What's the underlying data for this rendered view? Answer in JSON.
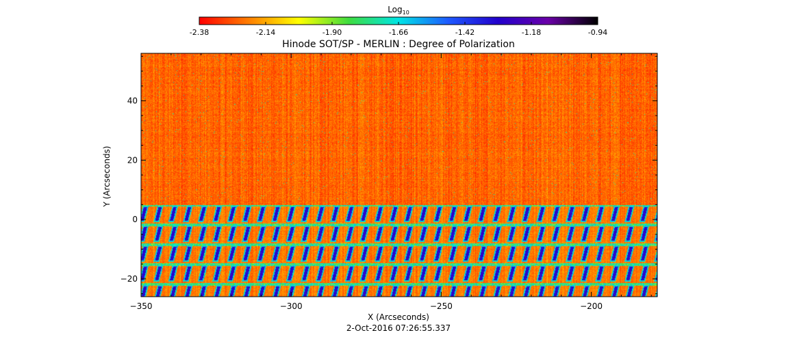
{
  "chart_data": {
    "type": "heatmap",
    "title": "Hinode SOT/SP - MERLIN : Degree of Polarization",
    "xlabel": "X (Arcseconds)",
    "ylabel": "Y (Arcseconds)",
    "xlim": [
      -350,
      -178
    ],
    "ylim": [
      -26,
      56
    ],
    "xticks": [
      -350,
      -300,
      -250,
      -200
    ],
    "yticks": [
      -20,
      0,
      20,
      40
    ],
    "timestamp": "2-Oct-2016 07:26:55.337",
    "colorbar": {
      "label": "Log",
      "label_subscript": "10",
      "range": [
        -2.38,
        -0.94
      ],
      "ticks": [
        "-2.38",
        "-2.14",
        "-1.90",
        "-1.66",
        "-1.42",
        "-1.18",
        "-0.94"
      ],
      "colormap_stops": [
        "#ff0000",
        "#ff7f00",
        "#ffff00",
        "#3fdc3f",
        "#00e5e5",
        "#1e5aff",
        "#2200cc",
        "#6a00a8",
        "#000000"
      ]
    },
    "field": {
      "upper_region": {
        "y_range": [
          5,
          56
        ],
        "log10_mean": -2.3
      },
      "lower_region": {
        "y_range": [
          -26,
          5
        ],
        "log10_background": -2.3,
        "log10_peak": -1.35
      }
    }
  }
}
